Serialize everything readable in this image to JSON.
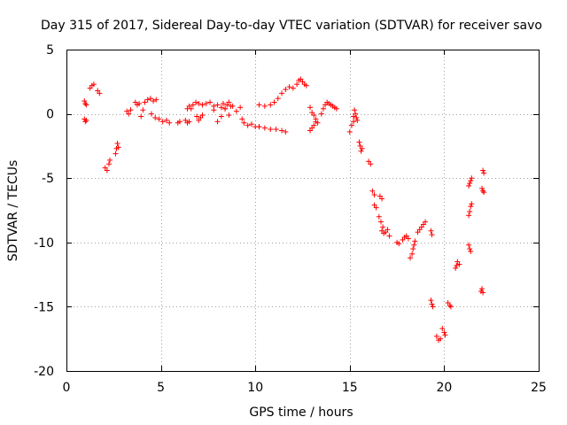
{
  "chart_data": {
    "type": "scatter",
    "title": "Day 315 of 2017, Sidereal Day-to-day VTEC variation (SDTVAR) for receiver savo",
    "xlabel": "GPS time / hours",
    "ylabel": "SDTVAR / TECUs",
    "xlim": [
      0,
      25
    ],
    "ylim": [
      -20,
      5
    ],
    "xticks": [
      0,
      5,
      10,
      15,
      20,
      25
    ],
    "yticks": [
      -20,
      -15,
      -10,
      -5,
      0,
      5
    ],
    "xtick_labels": [
      "0",
      "5",
      "10",
      "15",
      "20",
      "25"
    ],
    "ytick_labels": [
      "-20",
      "-15",
      "-10",
      "-5",
      "0",
      "5"
    ],
    "grid": true,
    "marker": "plus",
    "color": "#ff0000",
    "segments": [
      {
        "x": [
          0.95,
          1.0,
          1.05
        ],
        "y": [
          1.0,
          0.8,
          0.7
        ]
      },
      {
        "x": [
          0.95,
          1.0,
          1.05
        ],
        "y": [
          -0.4,
          -0.6,
          -0.5
        ]
      },
      {
        "x": [
          1.25,
          1.35,
          1.45
        ],
        "y": [
          2.0,
          2.2,
          2.3
        ]
      },
      {
        "x": [
          1.65,
          1.75
        ],
        "y": [
          1.8,
          1.6
        ]
      },
      {
        "x": [
          2.05,
          2.15,
          2.25,
          2.3
        ],
        "y": [
          -4.2,
          -4.4,
          -3.9,
          -3.6
        ]
      },
      {
        "x": [
          2.6,
          2.65,
          2.7,
          2.75
        ],
        "y": [
          -3.1,
          -2.7,
          -2.3,
          -2.6
        ]
      },
      {
        "x": [
          3.2,
          3.3,
          3.4
        ],
        "y": [
          0.2,
          0.0,
          0.3
        ]
      },
      {
        "x": [
          3.65,
          3.75,
          3.85
        ],
        "y": [
          0.9,
          0.7,
          0.8
        ]
      },
      {
        "x": [
          3.95,
          4.05,
          4.15,
          4.3,
          4.45,
          4.6,
          4.75
        ],
        "y": [
          -0.2,
          0.3,
          0.9,
          1.1,
          1.2,
          1.0,
          1.1
        ]
      },
      {
        "x": [
          4.5,
          4.7,
          4.9,
          5.1,
          5.3,
          5.45
        ],
        "y": [
          0.0,
          -0.3,
          -0.4,
          -0.6,
          -0.5,
          -0.7
        ]
      },
      {
        "x": [
          5.9,
          6.0
        ],
        "y": [
          -0.7,
          -0.6
        ]
      },
      {
        "x": [
          6.3,
          6.4,
          6.5
        ],
        "y": [
          -0.5,
          -0.7,
          -0.6
        ]
      },
      {
        "x": [
          6.4,
          6.5,
          6.6,
          6.7,
          6.85,
          7.0,
          7.2,
          7.4,
          7.6,
          7.8,
          8.0
        ],
        "y": [
          0.4,
          0.6,
          0.4,
          0.7,
          0.9,
          0.8,
          0.7,
          0.8,
          0.9,
          0.6,
          0.7
        ]
      },
      {
        "x": [
          6.9,
          7.0,
          7.1,
          7.2
        ],
        "y": [
          -0.2,
          -0.5,
          -0.3,
          -0.1
        ]
      },
      {
        "x": [
          7.8,
          8.0,
          8.2,
          8.4,
          8.6,
          8.8,
          9.0,
          9.2
        ],
        "y": [
          0.3,
          -0.6,
          -0.2,
          0.4,
          -0.1,
          0.6,
          0.2,
          0.5
        ]
      },
      {
        "x": [
          8.2,
          8.3,
          8.4,
          8.5,
          8.6,
          8.7
        ],
        "y": [
          0.5,
          0.8,
          0.4,
          0.7,
          0.9,
          0.6
        ]
      },
      {
        "x": [
          9.3,
          9.4,
          9.6,
          9.8,
          10.0,
          10.2
        ],
        "y": [
          -0.4,
          -0.7,
          -0.9,
          -0.8,
          -1.0,
          -1.0
        ]
      },
      {
        "x": [
          10.2,
          10.5,
          10.8,
          11.1,
          11.4,
          11.6
        ],
        "y": [
          -1.0,
          -1.1,
          -1.2,
          -1.2,
          -1.3,
          -1.4
        ]
      },
      {
        "x": [
          10.2,
          10.5,
          10.8,
          11.0,
          11.2,
          11.4,
          11.6,
          11.8,
          12.0
        ],
        "y": [
          0.7,
          0.6,
          0.7,
          0.9,
          1.2,
          1.6,
          1.9,
          2.1,
          2.0
        ]
      },
      {
        "x": [
          12.2,
          12.3,
          12.4,
          12.5,
          12.6,
          12.7
        ],
        "y": [
          2.3,
          2.6,
          2.7,
          2.5,
          2.3,
          2.2
        ]
      },
      {
        "x": [
          12.9,
          13.0,
          13.1,
          13.2,
          13.3
        ],
        "y": [
          0.5,
          0.1,
          -0.1,
          -0.4,
          -0.7
        ]
      },
      {
        "x": [
          12.9,
          13.0,
          13.1,
          13.2
        ],
        "y": [
          -1.3,
          -1.1,
          -0.9,
          -0.6
        ]
      },
      {
        "x": [
          13.5,
          13.6,
          13.7,
          13.8,
          13.9,
          14.0,
          14.1,
          14.2,
          14.3
        ],
        "y": [
          0.0,
          0.4,
          0.7,
          0.9,
          0.8,
          0.7,
          0.6,
          0.5,
          0.4
        ]
      },
      {
        "x": [
          15.0,
          15.1,
          15.2
        ],
        "y": [
          -1.4,
          -0.9,
          -0.6
        ]
      },
      {
        "x": [
          15.2,
          15.25,
          15.3,
          15.35,
          15.4
        ],
        "y": [
          -0.2,
          0.3,
          0.0,
          -0.3,
          -0.5
        ]
      },
      {
        "x": [
          15.5,
          15.55,
          15.6,
          15.65
        ],
        "y": [
          -2.2,
          -2.5,
          -2.9,
          -2.7
        ]
      },
      {
        "x": [
          16.0,
          16.1
        ],
        "y": [
          -3.7,
          -3.9
        ]
      },
      {
        "x": [
          16.2,
          16.3
        ],
        "y": [
          -6.0,
          -6.3
        ]
      },
      {
        "x": [
          16.3,
          16.4
        ],
        "y": [
          -7.1,
          -7.3
        ]
      },
      {
        "x": [
          16.6,
          16.7
        ],
        "y": [
          -6.4,
          -6.6
        ]
      },
      {
        "x": [
          16.55,
          16.65,
          16.75,
          16.9,
          17.0,
          17.1
        ],
        "y": [
          -8.0,
          -8.4,
          -8.8,
          -9.2,
          -9.0,
          -9.5
        ]
      },
      {
        "x": [
          16.7,
          16.8
        ],
        "y": [
          -9.1,
          -9.3
        ]
      },
      {
        "x": [
          17.5,
          17.6,
          17.8,
          17.9,
          18.0,
          18.1
        ],
        "y": [
          -10.0,
          -10.1,
          -9.8,
          -9.6,
          -9.5,
          -9.7
        ]
      },
      {
        "x": [
          18.2,
          18.3,
          18.35,
          18.4,
          18.45
        ],
        "y": [
          -11.2,
          -10.9,
          -10.5,
          -10.2,
          -9.9
        ]
      },
      {
        "x": [
          18.6,
          18.7,
          18.8,
          18.9,
          19.0
        ],
        "y": [
          -9.2,
          -9.0,
          -8.8,
          -8.6,
          -8.4
        ]
      },
      {
        "x": [
          19.3,
          19.35
        ],
        "y": [
          -9.1,
          -9.4
        ]
      },
      {
        "x": [
          19.3,
          19.35,
          19.4
        ],
        "y": [
          -14.5,
          -14.8,
          -15.0
        ]
      },
      {
        "x": [
          19.6,
          19.7,
          19.8
        ],
        "y": [
          -17.3,
          -17.6,
          -17.5
        ]
      },
      {
        "x": [
          19.9,
          20.0,
          20.05
        ],
        "y": [
          -16.7,
          -17.0,
          -17.2
        ]
      },
      {
        "x": [
          20.2,
          20.3,
          20.35
        ],
        "y": [
          -14.7,
          -14.9,
          -15.0
        ]
      },
      {
        "x": [
          20.6,
          20.65,
          20.7,
          20.8
        ],
        "y": [
          -12.0,
          -11.8,
          -11.5,
          -11.7
        ]
      },
      {
        "x": [
          21.3,
          21.35,
          21.4
        ],
        "y": [
          -10.2,
          -10.5,
          -10.7
        ]
      },
      {
        "x": [
          21.3,
          21.35,
          21.4,
          21.45
        ],
        "y": [
          -7.9,
          -7.6,
          -7.2,
          -7.0
        ]
      },
      {
        "x": [
          21.3,
          21.35,
          21.4,
          21.45
        ],
        "y": [
          -5.6,
          -5.4,
          -5.2,
          -5.0
        ]
      },
      {
        "x": [
          21.95,
          22.0,
          22.05
        ],
        "y": [
          -13.8,
          -13.6,
          -13.9
        ]
      },
      {
        "x": [
          22.0,
          22.05,
          22.1
        ],
        "y": [
          -5.8,
          -6.0,
          -6.1
        ]
      },
      {
        "x": [
          22.05,
          22.1
        ],
        "y": [
          -4.4,
          -4.6
        ]
      }
    ]
  }
}
